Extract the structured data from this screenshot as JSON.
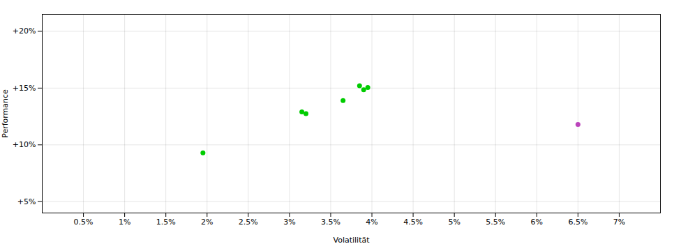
{
  "chart_data": {
    "type": "scatter",
    "xlabel": "Volatilität",
    "ylabel": "Performance",
    "xlim": [
      0.0,
      7.5
    ],
    "ylim": [
      4.0,
      21.5
    ],
    "xticks": [
      {
        "value": 0.5,
        "label": "0.5%"
      },
      {
        "value": 1.0,
        "label": "1%"
      },
      {
        "value": 1.5,
        "label": "1.5%"
      },
      {
        "value": 2.0,
        "label": "2%"
      },
      {
        "value": 2.5,
        "label": "2.5%"
      },
      {
        "value": 3.0,
        "label": "3%"
      },
      {
        "value": 3.5,
        "label": "3.5%"
      },
      {
        "value": 4.0,
        "label": "4%"
      },
      {
        "value": 4.5,
        "label": "4.5%"
      },
      {
        "value": 5.0,
        "label": "5%"
      },
      {
        "value": 5.5,
        "label": "5.5%"
      },
      {
        "value": 6.0,
        "label": "6%"
      },
      {
        "value": 6.5,
        "label": "6.5%"
      },
      {
        "value": 7.0,
        "label": "7%"
      }
    ],
    "yticks": [
      {
        "value": 5.0,
        "label": "+5%"
      },
      {
        "value": 10.0,
        "label": "+10%"
      },
      {
        "value": 15.0,
        "label": "+15%"
      },
      {
        "value": 20.0,
        "label": "+20%"
      }
    ],
    "grid": true,
    "series": [
      {
        "color": "#00cc00",
        "x": [
          1.95,
          3.15,
          3.2,
          3.65,
          3.85,
          3.9,
          3.95
        ],
        "y": [
          9.3,
          12.9,
          12.75,
          13.9,
          15.2,
          14.85,
          15.05
        ]
      },
      {
        "color": "#bb44bb",
        "x": [
          6.5
        ],
        "y": [
          11.8
        ]
      }
    ]
  }
}
